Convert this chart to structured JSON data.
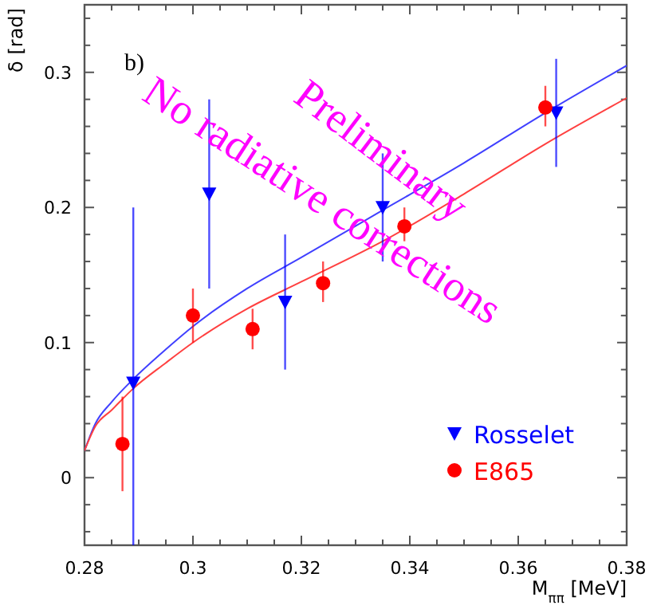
{
  "chart_data": {
    "type": "scatter",
    "xlabel": "M$_{ππ}$ [MeV]",
    "ylabel": "δ [rad]",
    "annotations": [
      "b)",
      "Preliminary",
      "No radiative corrections"
    ],
    "xlim": [
      0.28,
      0.38
    ],
    "ylim": [
      -0.05,
      0.35
    ],
    "xticks": [
      0.28,
      {
        "value": 0.285,
        "label": null
      },
      {
        "value": 0.29,
        "label": null
      },
      {
        "value": 0.295,
        "label": null
      },
      0.3,
      {
        "value": 0.305,
        "label": null
      },
      {
        "value": 0.31,
        "label": null
      },
      {
        "value": 0.315,
        "label": null
      },
      0.32,
      {
        "value": 0.325,
        "label": null
      },
      {
        "value": 0.33,
        "label": null
      },
      {
        "value": 0.335,
        "label": null
      },
      0.34,
      {
        "value": 0.345,
        "label": null
      },
      {
        "value": 0.35,
        "label": null
      },
      {
        "value": 0.355,
        "label": null
      },
      0.36,
      {
        "value": 0.365,
        "label": null
      },
      {
        "value": 0.37,
        "label": null
      },
      {
        "value": 0.375,
        "label": null
      },
      0.38
    ],
    "yticks": [
      {
        "value": -0.04,
        "label": null
      },
      {
        "value": -0.02,
        "label": null
      },
      0,
      {
        "value": 0.02,
        "label": null
      },
      {
        "value": 0.04,
        "label": null
      },
      {
        "value": 0.06,
        "label": null
      },
      {
        "value": 0.08,
        "label": null
      },
      0.1,
      {
        "value": 0.12,
        "label": null
      },
      {
        "value": 0.14,
        "label": null
      },
      {
        "value": 0.16,
        "label": null
      },
      {
        "value": 0.18,
        "label": null
      },
      0.2,
      {
        "value": 0.22,
        "label": null
      },
      {
        "value": 0.24,
        "label": null
      },
      {
        "value": 0.26,
        "label": null
      },
      {
        "value": 0.28,
        "label": null
      },
      0.3,
      {
        "value": 0.32,
        "label": null
      },
      {
        "value": 0.34,
        "label": null
      }
    ],
    "grid": false,
    "legend": "bottom right",
    "series": [
      {
        "type": "line",
        "color": "#4040ff",
        "marker": "none",
        "x": [
          0.28,
          0.282,
          0.285,
          0.289,
          0.295,
          0.3,
          0.31,
          0.32,
          0.335,
          0.35,
          0.365,
          0.38
        ],
        "values": [
          0.02,
          0.04,
          0.056,
          0.073,
          0.095,
          0.112,
          0.14,
          0.163,
          0.198,
          0.233,
          0.27,
          0.305
        ]
      },
      {
        "type": "line",
        "color": "#ff4040",
        "marker": "none",
        "x": [
          0.28,
          0.282,
          0.285,
          0.289,
          0.295,
          0.3,
          0.31,
          0.32,
          0.335,
          0.35,
          0.365,
          0.38
        ],
        "values": [
          0.02,
          0.038,
          0.05,
          0.066,
          0.085,
          0.1,
          0.125,
          0.145,
          0.175,
          0.21,
          0.247,
          0.281
        ]
      },
      {
        "name": "Rosselet",
        "color": "#0000ff",
        "marker": "triangle",
        "x": [
          0.289,
          0.303,
          0.317,
          0.335,
          0.367
        ],
        "values": [
          0.07,
          0.21,
          0.13,
          0.2,
          0.27
        ],
        "errors": [
          [
            -0.05,
            0.2
          ],
          [
            0.14,
            0.28
          ],
          [
            0.08,
            0.18
          ],
          [
            0.16,
            0.24
          ],
          [
            0.23,
            0.31
          ]
        ]
      },
      {
        "name": "E865",
        "color": "#ff0000",
        "marker": "circle",
        "x": [
          0.287,
          0.3,
          0.311,
          0.324,
          0.339,
          0.365
        ],
        "values": [
          0.025,
          0.12,
          0.11,
          0.144,
          0.186,
          0.274
        ],
        "errors": [
          [
            -0.01,
            0.06
          ],
          [
            0.1,
            0.14
          ],
          [
            0.095,
            0.125
          ],
          [
            0.13,
            0.16
          ],
          [
            0.175,
            0.2
          ],
          [
            0.26,
            0.29
          ]
        ]
      }
    ]
  }
}
